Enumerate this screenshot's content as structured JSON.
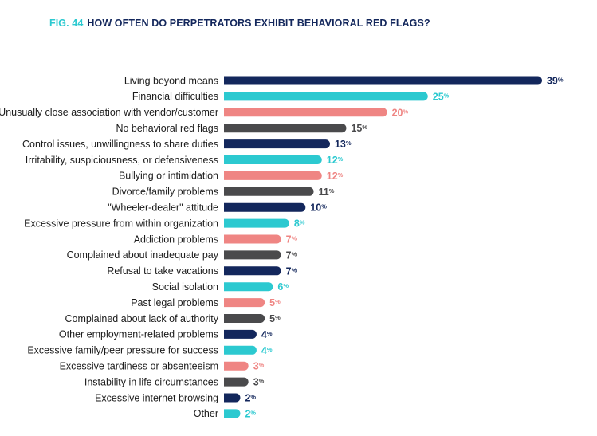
{
  "figure": {
    "label": "FIG. 44",
    "title": "HOW OFTEN DO PERPETRATORS EXHIBIT BEHAVIORAL RED FLAGS?"
  },
  "colors": {
    "navy": "#13275c",
    "teal": "#2cc9d0",
    "salmon": "#ef8583",
    "gray": "#4a4a4c",
    "title_accent": "#2cc9d0",
    "title_text": "#13275c"
  },
  "chart_data": {
    "type": "bar",
    "orientation": "horizontal",
    "title": "HOW OFTEN DO PERPETRATORS EXHIBIT BEHAVIORAL RED FLAGS?",
    "unit": "%",
    "xlim": [
      0,
      40
    ],
    "grid": false,
    "legend": "none",
    "categories": [
      "Living beyond means",
      "Financial difficulties",
      "Unusually close association with vendor/customer",
      "No behavioral red flags",
      "Control issues, unwillingness to share duties",
      "Irritability, suspiciousness, or defensiveness",
      "Bullying or intimidation",
      "Divorce/family problems",
      "\"Wheeler-dealer\" attitude",
      "Excessive pressure from within organization",
      "Addiction problems",
      "Complained about inadequate pay",
      "Refusal to take vacations",
      "Social isolation",
      "Past legal problems",
      "Complained about lack of authority",
      "Other employment-related problems",
      "Excessive family/peer pressure for success",
      "Excessive tardiness or absenteeism",
      "Instability in life circumstances",
      "Excessive internet browsing",
      "Other"
    ],
    "values": [
      39,
      25,
      20,
      15,
      13,
      12,
      12,
      11,
      10,
      8,
      7,
      7,
      7,
      6,
      5,
      5,
      4,
      4,
      3,
      3,
      2,
      2
    ],
    "bar_colors": [
      "navy",
      "teal",
      "salmon",
      "gray",
      "navy",
      "teal",
      "salmon",
      "gray",
      "navy",
      "teal",
      "salmon",
      "gray",
      "navy",
      "teal",
      "salmon",
      "gray",
      "navy",
      "teal",
      "salmon",
      "gray",
      "navy",
      "teal"
    ]
  }
}
